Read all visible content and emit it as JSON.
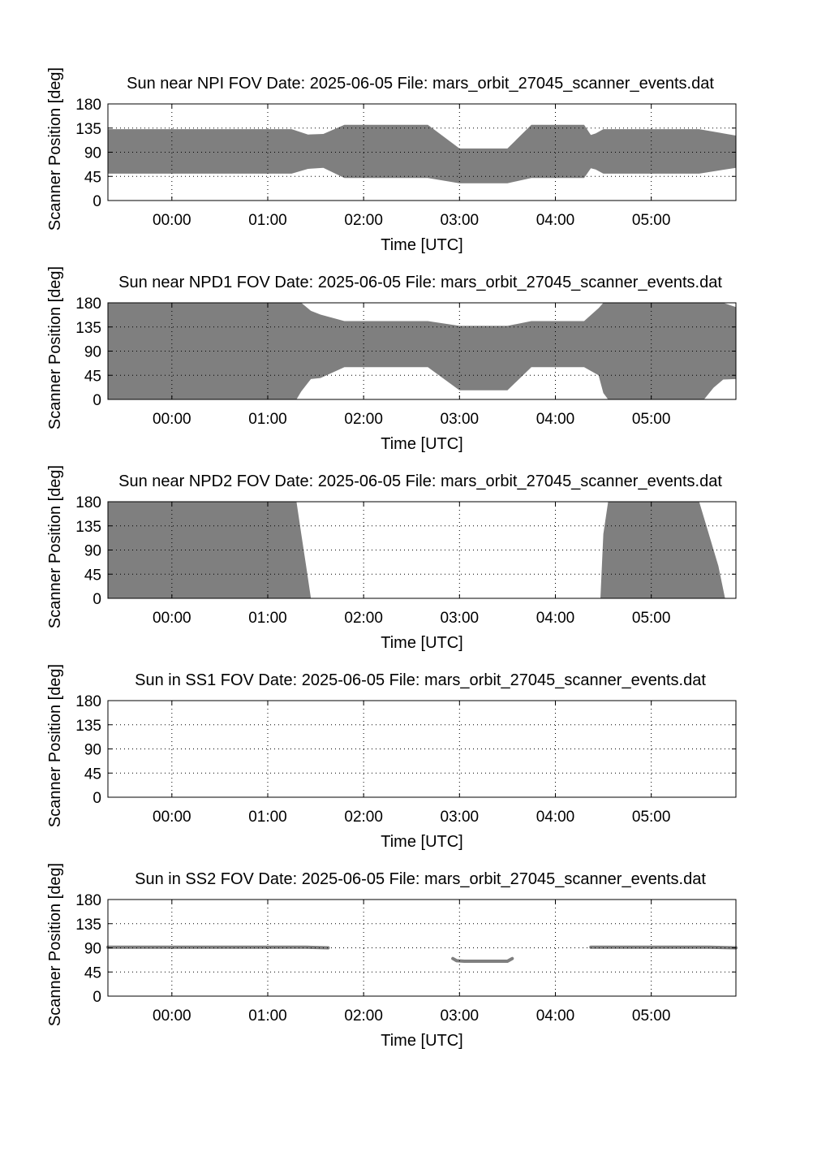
{
  "figure": {
    "colors": {
      "fill": "#7f7f7f",
      "axes": "#000000",
      "background": "#ffffff"
    }
  },
  "chart_data": [
    {
      "type": "area",
      "title": "Sun near NPI FOV   Date: 2025-06-05   File: mars_orbit_27045_scanner_events.dat",
      "xlabel": "Time [UTC]",
      "ylabel": "Scanner Position [deg]",
      "xlim": [
        "-0.667",
        "5.883"
      ],
      "ylim": [
        0,
        180
      ],
      "x_unit": "hours UTC on 2025-06-05",
      "xtick_labels": [
        "00:00",
        "01:00",
        "02:00",
        "03:00",
        "04:00",
        "05:00"
      ],
      "xtick_values": [
        0,
        1,
        2,
        3,
        4,
        5
      ],
      "ytick_labels": [
        "0",
        "45",
        "90",
        "135",
        "180"
      ],
      "ytick_values": [
        0,
        45,
        90,
        135,
        180
      ],
      "grid": true,
      "series": [
        {
          "x": [
            -0.667,
            1.25,
            1.42,
            1.58,
            1.8,
            2.67,
            3.0,
            3.5,
            3.75,
            4.3,
            4.37,
            4.42,
            4.5,
            5.5,
            5.883
          ],
          "upper": [
            133,
            133,
            123,
            124,
            141,
            141,
            97,
            97,
            141,
            141,
            122,
            125,
            133,
            133,
            121
          ],
          "lower": [
            50,
            50,
            59,
            61,
            42,
            42,
            32,
            32,
            42,
            42,
            60,
            58,
            50,
            50,
            61
          ]
        }
      ]
    },
    {
      "type": "area",
      "title": "Sun near NPD1 FOV   Date: 2025-06-05   File: mars_orbit_27045_scanner_events.dat",
      "xlabel": "Time [UTC]",
      "ylabel": "Scanner Position [deg]",
      "xlim": [
        "-0.667",
        "5.883"
      ],
      "ylim": [
        0,
        180
      ],
      "xtick_labels": [
        "00:00",
        "01:00",
        "02:00",
        "03:00",
        "04:00",
        "05:00"
      ],
      "xtick_values": [
        0,
        1,
        2,
        3,
        4,
        5
      ],
      "ytick_labels": [
        "0",
        "45",
        "90",
        "135",
        "180"
      ],
      "ytick_values": [
        0,
        45,
        90,
        135,
        180
      ],
      "grid": true,
      "series": [
        {
          "x": [
            -0.667,
            1.3,
            1.35,
            1.45,
            1.55,
            1.8,
            2.67,
            3.0,
            3.5,
            3.75,
            4.3,
            4.45,
            4.5,
            4.55,
            5.55,
            5.65,
            5.75,
            5.883
          ],
          "upper": [
            180,
            180,
            180,
            165,
            158,
            146,
            146,
            137,
            137,
            146,
            146,
            170,
            180,
            180,
            180,
            180,
            180,
            172
          ],
          "lower": [
            0,
            0,
            15,
            38,
            40,
            60,
            60,
            17,
            17,
            60,
            60,
            45,
            12,
            0,
            0,
            22,
            37,
            38
          ]
        }
      ]
    },
    {
      "type": "area",
      "title": "Sun near NPD2 FOV   Date: 2025-06-05   File: mars_orbit_27045_scanner_events.dat",
      "xlabel": "Time [UTC]",
      "ylabel": "Scanner Position [deg]",
      "xlim": [
        "-0.667",
        "5.883"
      ],
      "ylim": [
        0,
        180
      ],
      "xtick_labels": [
        "00:00",
        "01:00",
        "02:00",
        "03:00",
        "04:00",
        "05:00"
      ],
      "xtick_values": [
        0,
        1,
        2,
        3,
        4,
        5
      ],
      "ytick_labels": [
        "0",
        "45",
        "90",
        "135",
        "180"
      ],
      "ytick_values": [
        0,
        45,
        90,
        135,
        180
      ],
      "grid": true,
      "segments": [
        {
          "x": [
            -0.667,
            1.3,
            1.35,
            1.4,
            1.45
          ],
          "upper": [
            180,
            180,
            120,
            60,
            0
          ],
          "lower": [
            0,
            0,
            0,
            0,
            0
          ]
        },
        {
          "x": [
            4.47,
            4.5,
            4.55,
            5.5,
            5.6,
            5.7,
            5.77
          ],
          "upper": [
            0,
            120,
            180,
            180,
            120,
            60,
            0
          ],
          "lower": [
            0,
            0,
            0,
            0,
            0,
            0,
            0
          ]
        }
      ]
    },
    {
      "type": "area",
      "title": "Sun in SS1 FOV   Date: 2025-06-05   File: mars_orbit_27045_scanner_events.dat",
      "xlabel": "Time [UTC]",
      "ylabel": "Scanner Position [deg]",
      "xlim": [
        "-0.667",
        "5.883"
      ],
      "ylim": [
        0,
        180
      ],
      "xtick_labels": [
        "00:00",
        "01:00",
        "02:00",
        "03:00",
        "04:00",
        "05:00"
      ],
      "xtick_values": [
        0,
        1,
        2,
        3,
        4,
        5
      ],
      "ytick_labels": [
        "0",
        "45",
        "90",
        "135",
        "180"
      ],
      "ytick_values": [
        0,
        45,
        90,
        135,
        180
      ],
      "grid": true,
      "segments": []
    },
    {
      "type": "line",
      "title": "Sun in SS2 FOV   Date: 2025-06-05   File: mars_orbit_27045_scanner_events.dat",
      "xlabel": "Time [UTC]",
      "ylabel": "Scanner Position [deg]",
      "xlim": [
        "-0.667",
        "5.883"
      ],
      "ylim": [
        0,
        180
      ],
      "xtick_labels": [
        "00:00",
        "01:00",
        "02:00",
        "03:00",
        "04:00",
        "05:00"
      ],
      "xtick_values": [
        0,
        1,
        2,
        3,
        4,
        5
      ],
      "ytick_labels": [
        "0",
        "45",
        "90",
        "135",
        "180"
      ],
      "ytick_values": [
        0,
        45,
        90,
        135,
        180
      ],
      "grid": true,
      "lines": [
        {
          "x": [
            -0.667,
            1.4,
            1.63
          ],
          "y": [
            91,
            91,
            90
          ]
        },
        {
          "x": [
            2.93,
            2.97,
            3.05,
            3.5,
            3.55
          ],
          "y": [
            70,
            66,
            65,
            65,
            70
          ]
        },
        {
          "x": [
            4.37,
            5.6,
            5.883
          ],
          "y": [
            91,
            91,
            90
          ]
        }
      ]
    }
  ]
}
